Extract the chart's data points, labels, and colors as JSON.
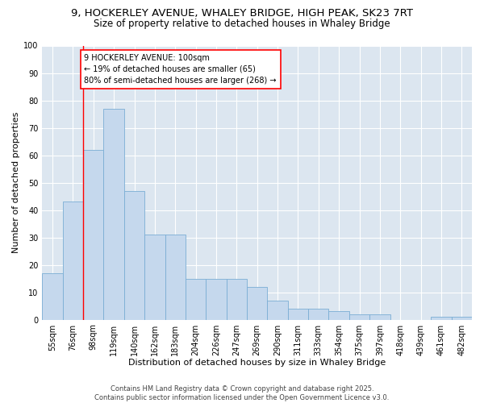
{
  "title_line1": "9, HOCKERLEY AVENUE, WHALEY BRIDGE, HIGH PEAK, SK23 7RT",
  "title_line2": "Size of property relative to detached houses in Whaley Bridge",
  "xlabel": "Distribution of detached houses by size in Whaley Bridge",
  "ylabel": "Number of detached properties",
  "categories": [
    "55sqm",
    "76sqm",
    "98sqm",
    "119sqm",
    "140sqm",
    "162sqm",
    "183sqm",
    "204sqm",
    "226sqm",
    "247sqm",
    "269sqm",
    "290sqm",
    "311sqm",
    "333sqm",
    "354sqm",
    "375sqm",
    "397sqm",
    "418sqm",
    "439sqm",
    "461sqm",
    "482sqm"
  ],
  "values": [
    17,
    43,
    62,
    77,
    47,
    31,
    31,
    15,
    15,
    15,
    12,
    7,
    4,
    4,
    3,
    2,
    2,
    0,
    0,
    1,
    1
  ],
  "bar_color": "#c5d8ed",
  "bar_edge_color": "#7aadd4",
  "background_color": "#dce6f0",
  "annotation_text": "9 HOCKERLEY AVENUE: 100sqm\n← 19% of detached houses are smaller (65)\n80% of semi-detached houses are larger (268) →",
  "annotation_box_color": "white",
  "annotation_box_edge": "red",
  "red_line_index": 2,
  "ylim": [
    0,
    100
  ],
  "yticks": [
    0,
    10,
    20,
    30,
    40,
    50,
    60,
    70,
    80,
    90,
    100
  ],
  "footnote": "Contains HM Land Registry data © Crown copyright and database right 2025.\nContains public sector information licensed under the Open Government Licence v3.0.",
  "title_fontsize": 9.5,
  "subtitle_fontsize": 8.5,
  "axis_label_fontsize": 8,
  "tick_fontsize": 7,
  "annotation_fontsize": 7,
  "footnote_fontsize": 6
}
